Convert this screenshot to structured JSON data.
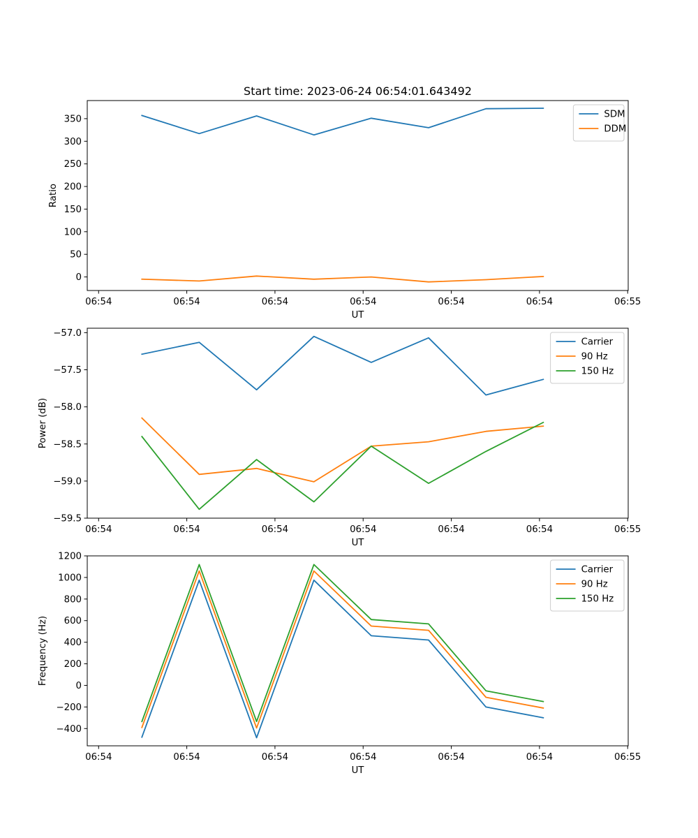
{
  "figure": {
    "title": "Start time: 2023-06-24 06:54:01.643492"
  },
  "chart_data": [
    {
      "type": "line",
      "title": "Start time: 2023-06-24 06:54:01.643492",
      "xlabel": "UT",
      "ylabel": "Ratio",
      "x_tick_labels": [
        "06:54",
        "06:54",
        "06:54",
        "06:54",
        "06:54",
        "06:54",
        "06:55"
      ],
      "y_ticks": [
        0,
        50,
        100,
        150,
        200,
        250,
        300,
        350
      ],
      "ylim": [
        -30,
        390
      ],
      "legend_position": "top-right",
      "grid": false,
      "x_points": [
        1,
        2,
        3,
        4,
        5,
        6,
        7,
        8
      ],
      "series": [
        {
          "name": "SDM",
          "color": "#1f77b4",
          "values": [
            357,
            317,
            356,
            314,
            351,
            330,
            372,
            373
          ]
        },
        {
          "name": "DDM",
          "color": "#ff7f0e",
          "values": [
            -5,
            -9,
            2,
            -5,
            0,
            -11,
            -6,
            1
          ]
        }
      ]
    },
    {
      "type": "line",
      "xlabel": "UT",
      "ylabel": "Power (dB)",
      "x_tick_labels": [
        "06:54",
        "06:54",
        "06:54",
        "06:54",
        "06:54",
        "06:54",
        "06:55"
      ],
      "y_ticks": [
        -59.5,
        -59.0,
        -58.5,
        -58.0,
        -57.5,
        -57.0
      ],
      "y_tick_labels": [
        "−59.5",
        "−59.0",
        "−58.5",
        "−58.0",
        "−57.5",
        "−57.0"
      ],
      "ylim": [
        -59.5,
        -56.94
      ],
      "legend_position": "top-right",
      "grid": false,
      "x_points": [
        1,
        2,
        3,
        4,
        5,
        6,
        7,
        8
      ],
      "series": [
        {
          "name": "Carrier",
          "color": "#1f77b4",
          "values": [
            -57.29,
            -57.13,
            -57.77,
            -57.05,
            -57.4,
            -57.07,
            -57.84,
            -57.63
          ]
        },
        {
          "name": "90 Hz",
          "color": "#ff7f0e",
          "values": [
            -58.15,
            -58.91,
            -58.83,
            -59.01,
            -58.53,
            -58.47,
            -58.33,
            -58.26
          ]
        },
        {
          "name": "150 Hz",
          "color": "#2ca02c",
          "values": [
            -58.4,
            -59.38,
            -58.71,
            -59.28,
            -58.53,
            -59.03,
            -58.6,
            -58.21
          ]
        }
      ]
    },
    {
      "type": "line",
      "xlabel": "UT",
      "ylabel": "Frequency (Hz)",
      "x_tick_labels": [
        "06:54",
        "06:54",
        "06:54",
        "06:54",
        "06:54",
        "06:54",
        "06:55"
      ],
      "y_ticks": [
        -400,
        -200,
        0,
        200,
        400,
        600,
        800,
        1000,
        1200
      ],
      "y_tick_labels": [
        "−400",
        "−200",
        "0",
        "200",
        "400",
        "600",
        "800",
        "1000",
        "1200"
      ],
      "ylim": [
        -560,
        1200
      ],
      "legend_position": "top-right",
      "grid": false,
      "x_points": [
        1,
        2,
        3,
        4,
        5,
        6,
        7,
        8
      ],
      "series": [
        {
          "name": "Carrier",
          "color": "#1f77b4",
          "values": [
            -480,
            975,
            -485,
            975,
            460,
            420,
            -200,
            -300
          ]
        },
        {
          "name": "90 Hz",
          "color": "#ff7f0e",
          "values": [
            -390,
            1060,
            -395,
            1060,
            550,
            510,
            -110,
            -210
          ]
        },
        {
          "name": "150 Hz",
          "color": "#2ca02c",
          "values": [
            -335,
            1120,
            -335,
            1120,
            610,
            570,
            -50,
            -150
          ]
        }
      ]
    }
  ]
}
